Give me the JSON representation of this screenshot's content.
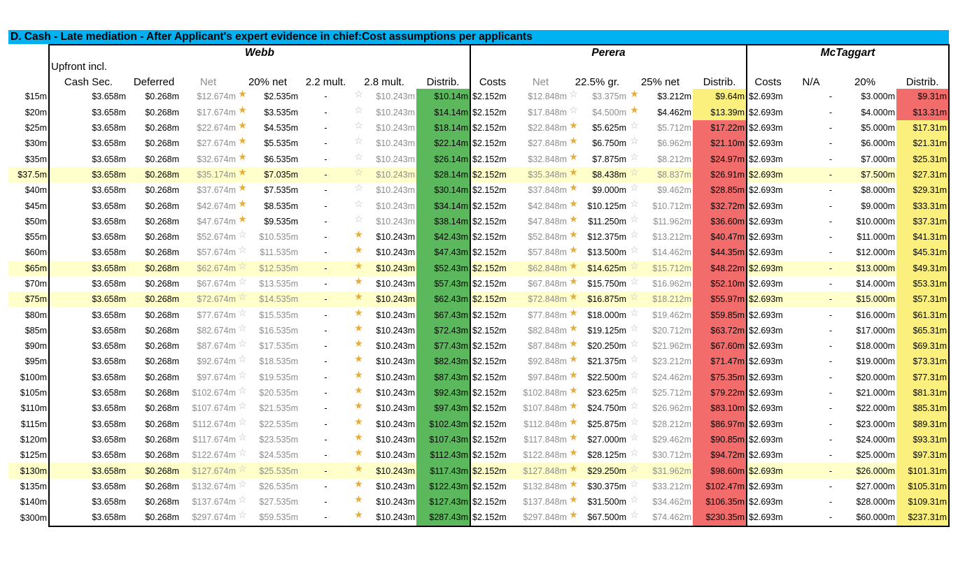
{
  "title": "D.  Cash - Late mediation - After Applicant's expert evidence in chief:Cost assumptions per applicants",
  "groups": {
    "webb": "Webb",
    "perera": "Perera",
    "mctaggart": "McTaggart"
  },
  "headers": {
    "upfront_line1": "Upfront incl.",
    "upfront_line2": "Cash Sec.",
    "deferred": "Deferred",
    "net": "Net",
    "w_20net": "20% net",
    "w_22": "2.2 mult.",
    "w_28": "2.8 mult.",
    "distrib": "Distrib.",
    "costs": "Costs",
    "p_225": "22.5% gr.",
    "p_25": "25% net",
    "na": "N/A",
    "m_20": "20%"
  },
  "constants": {
    "upfront": "$3.658m",
    "deferred": "$0.268m",
    "w_22": "-",
    "w_28": "$10.243m",
    "p_costs": "$2.152m",
    "m_costs": "$2.693m",
    "m_na": "-"
  },
  "colors": {
    "title_bg": "#00b0f0",
    "highlight_row": "#ffffcc",
    "green": "#5cb85c",
    "red": "#f36c6c",
    "yellow": "#fbf07e",
    "star_filled": "#e3ae3d",
    "star_empty": "#b8b8b8"
  },
  "icons": {
    "filled": "star-filled-icon",
    "empty": "star-empty-icon"
  },
  "rows": [
    {
      "label": "$15m",
      "hl": false,
      "w_net": "$12.674m",
      "w_20": "$2.535m",
      "w_20_star": true,
      "w_28_star": false,
      "w_dist": "$10.14m",
      "p_net": "$12.848m",
      "p_225": "$3.375m",
      "p_225_star": false,
      "p_25": "$3.212m",
      "p_25_star": true,
      "p_dist": "$9.64m",
      "p_dist_color": "yellow",
      "m_20": "$3.000m",
      "m_dist": "$9.31m",
      "m_dist_color": "red"
    },
    {
      "label": "$20m",
      "hl": false,
      "w_net": "$17.674m",
      "w_20": "$3.535m",
      "w_20_star": true,
      "w_28_star": false,
      "w_dist": "$14.14m",
      "p_net": "$17.848m",
      "p_225": "$4.500m",
      "p_225_star": false,
      "p_25": "$4.462m",
      "p_25_star": true,
      "p_dist": "$13.39m",
      "p_dist_color": "yellow",
      "m_20": "$4.000m",
      "m_dist": "$13.31m",
      "m_dist_color": "red"
    },
    {
      "label": "$25m",
      "hl": false,
      "w_net": "$22.674m",
      "w_20": "$4.535m",
      "w_20_star": true,
      "w_28_star": false,
      "w_dist": "$18.14m",
      "p_net": "$22.848m",
      "p_225": "$5.625m",
      "p_225_star": true,
      "p_25": "$5.712m",
      "p_25_star": false,
      "p_dist": "$17.22m",
      "p_dist_color": "red",
      "m_20": "$5.000m",
      "m_dist": "$17.31m",
      "m_dist_color": "yellow"
    },
    {
      "label": "$30m",
      "hl": false,
      "w_net": "$27.674m",
      "w_20": "$5.535m",
      "w_20_star": true,
      "w_28_star": false,
      "w_dist": "$22.14m",
      "p_net": "$27.848m",
      "p_225": "$6.750m",
      "p_225_star": true,
      "p_25": "$6.962m",
      "p_25_star": false,
      "p_dist": "$21.10m",
      "p_dist_color": "red",
      "m_20": "$6.000m",
      "m_dist": "$21.31m",
      "m_dist_color": "yellow"
    },
    {
      "label": "$35m",
      "hl": false,
      "w_net": "$32.674m",
      "w_20": "$6.535m",
      "w_20_star": true,
      "w_28_star": false,
      "w_dist": "$26.14m",
      "p_net": "$32.848m",
      "p_225": "$7.875m",
      "p_225_star": true,
      "p_25": "$8.212m",
      "p_25_star": false,
      "p_dist": "$24.97m",
      "p_dist_color": "red",
      "m_20": "$7.000m",
      "m_dist": "$25.31m",
      "m_dist_color": "yellow"
    },
    {
      "label": "$37.5m",
      "hl": true,
      "w_net": "$35.174m",
      "w_20": "$7.035m",
      "w_20_star": true,
      "w_28_star": false,
      "w_dist": "$28.14m",
      "p_net": "$35.348m",
      "p_225": "$8.438m",
      "p_225_star": true,
      "p_25": "$8.837m",
      "p_25_star": false,
      "p_dist": "$26.91m",
      "p_dist_color": "red",
      "m_20": "$7.500m",
      "m_dist": "$27.31m",
      "m_dist_color": "yellow"
    },
    {
      "label": "$40m",
      "hl": false,
      "w_net": "$37.674m",
      "w_20": "$7.535m",
      "w_20_star": true,
      "w_28_star": false,
      "w_dist": "$30.14m",
      "p_net": "$37.848m",
      "p_225": "$9.000m",
      "p_225_star": true,
      "p_25": "$9.462m",
      "p_25_star": false,
      "p_dist": "$28.85m",
      "p_dist_color": "red",
      "m_20": "$8.000m",
      "m_dist": "$29.31m",
      "m_dist_color": "yellow"
    },
    {
      "label": "$45m",
      "hl": false,
      "w_net": "$42.674m",
      "w_20": "$8.535m",
      "w_20_star": true,
      "w_28_star": false,
      "w_dist": "$34.14m",
      "p_net": "$42.848m",
      "p_225": "$10.125m",
      "p_225_star": true,
      "p_25": "$10.712m",
      "p_25_star": false,
      "p_dist": "$32.72m",
      "p_dist_color": "red",
      "m_20": "$9.000m",
      "m_dist": "$33.31m",
      "m_dist_color": "yellow"
    },
    {
      "label": "$50m",
      "hl": false,
      "w_net": "$47.674m",
      "w_20": "$9.535m",
      "w_20_star": true,
      "w_28_star": false,
      "w_dist": "$38.14m",
      "p_net": "$47.848m",
      "p_225": "$11.250m",
      "p_225_star": true,
      "p_25": "$11.962m",
      "p_25_star": false,
      "p_dist": "$36.60m",
      "p_dist_color": "red",
      "m_20": "$10.000m",
      "m_dist": "$37.31m",
      "m_dist_color": "yellow"
    },
    {
      "label": "$55m",
      "hl": false,
      "w_net": "$52.674m",
      "w_20": "$10.535m",
      "w_20_star": false,
      "w_28_star": true,
      "w_dist": "$42.43m",
      "p_net": "$52.848m",
      "p_225": "$12.375m",
      "p_225_star": true,
      "p_25": "$13.212m",
      "p_25_star": false,
      "p_dist": "$40.47m",
      "p_dist_color": "red",
      "m_20": "$11.000m",
      "m_dist": "$41.31m",
      "m_dist_color": "yellow"
    },
    {
      "label": "$60m",
      "hl": false,
      "w_net": "$57.674m",
      "w_20": "$11.535m",
      "w_20_star": false,
      "w_28_star": true,
      "w_dist": "$47.43m",
      "p_net": "$57.848m",
      "p_225": "$13.500m",
      "p_225_star": true,
      "p_25": "$14.462m",
      "p_25_star": false,
      "p_dist": "$44.35m",
      "p_dist_color": "red",
      "m_20": "$12.000m",
      "m_dist": "$45.31m",
      "m_dist_color": "yellow"
    },
    {
      "label": "$65m",
      "hl": true,
      "w_net": "$62.674m",
      "w_20": "$12.535m",
      "w_20_star": false,
      "w_28_star": true,
      "w_dist": "$52.43m",
      "p_net": "$62.848m",
      "p_225": "$14.625m",
      "p_225_star": true,
      "p_25": "$15.712m",
      "p_25_star": false,
      "p_dist": "$48.22m",
      "p_dist_color": "red",
      "m_20": "$13.000m",
      "m_dist": "$49.31m",
      "m_dist_color": "yellow"
    },
    {
      "label": "$70m",
      "hl": false,
      "w_net": "$67.674m",
      "w_20": "$13.535m",
      "w_20_star": false,
      "w_28_star": true,
      "w_dist": "$57.43m",
      "p_net": "$67.848m",
      "p_225": "$15.750m",
      "p_225_star": true,
      "p_25": "$16.962m",
      "p_25_star": false,
      "p_dist": "$52.10m",
      "p_dist_color": "red",
      "m_20": "$14.000m",
      "m_dist": "$53.31m",
      "m_dist_color": "yellow"
    },
    {
      "label": "$75m",
      "hl": true,
      "w_net": "$72.674m",
      "w_20": "$14.535m",
      "w_20_star": false,
      "w_28_star": true,
      "w_dist": "$62.43m",
      "p_net": "$72.848m",
      "p_225": "$16.875m",
      "p_225_star": true,
      "p_25": "$18.212m",
      "p_25_star": false,
      "p_dist": "$55.97m",
      "p_dist_color": "red",
      "m_20": "$15.000m",
      "m_dist": "$57.31m",
      "m_dist_color": "yellow"
    },
    {
      "label": "$80m",
      "hl": false,
      "w_net": "$77.674m",
      "w_20": "$15.535m",
      "w_20_star": false,
      "w_28_star": true,
      "w_dist": "$67.43m",
      "p_net": "$77.848m",
      "p_225": "$18.000m",
      "p_225_star": true,
      "p_25": "$19.462m",
      "p_25_star": false,
      "p_dist": "$59.85m",
      "p_dist_color": "red",
      "m_20": "$16.000m",
      "m_dist": "$61.31m",
      "m_dist_color": "yellow"
    },
    {
      "label": "$85m",
      "hl": false,
      "w_net": "$82.674m",
      "w_20": "$16.535m",
      "w_20_star": false,
      "w_28_star": true,
      "w_dist": "$72.43m",
      "p_net": "$82.848m",
      "p_225": "$19.125m",
      "p_225_star": true,
      "p_25": "$20.712m",
      "p_25_star": false,
      "p_dist": "$63.72m",
      "p_dist_color": "red",
      "m_20": "$17.000m",
      "m_dist": "$65.31m",
      "m_dist_color": "yellow"
    },
    {
      "label": "$90m",
      "hl": false,
      "w_net": "$87.674m",
      "w_20": "$17.535m",
      "w_20_star": false,
      "w_28_star": true,
      "w_dist": "$77.43m",
      "p_net": "$87.848m",
      "p_225": "$20.250m",
      "p_225_star": true,
      "p_25": "$21.962m",
      "p_25_star": false,
      "p_dist": "$67.60m",
      "p_dist_color": "red",
      "m_20": "$18.000m",
      "m_dist": "$69.31m",
      "m_dist_color": "yellow"
    },
    {
      "label": "$95m",
      "hl": false,
      "w_net": "$92.674m",
      "w_20": "$18.535m",
      "w_20_star": false,
      "w_28_star": true,
      "w_dist": "$82.43m",
      "p_net": "$92.848m",
      "p_225": "$21.375m",
      "p_225_star": true,
      "p_25": "$23.212m",
      "p_25_star": false,
      "p_dist": "$71.47m",
      "p_dist_color": "red",
      "m_20": "$19.000m",
      "m_dist": "$73.31m",
      "m_dist_color": "yellow"
    },
    {
      "label": "$100m",
      "hl": false,
      "w_net": "$97.674m",
      "w_20": "$19.535m",
      "w_20_star": false,
      "w_28_star": true,
      "w_dist": "$87.43m",
      "p_net": "$97.848m",
      "p_225": "$22.500m",
      "p_225_star": true,
      "p_25": "$24.462m",
      "p_25_star": false,
      "p_dist": "$75.35m",
      "p_dist_color": "red",
      "m_20": "$20.000m",
      "m_dist": "$77.31m",
      "m_dist_color": "yellow"
    },
    {
      "label": "$105m",
      "hl": false,
      "w_net": "$102.674m",
      "w_20": "$20.535m",
      "w_20_star": false,
      "w_28_star": true,
      "w_dist": "$92.43m",
      "p_net": "$102.848m",
      "p_225": "$23.625m",
      "p_225_star": true,
      "p_25": "$25.712m",
      "p_25_star": false,
      "p_dist": "$79.22m",
      "p_dist_color": "red",
      "m_20": "$21.000m",
      "m_dist": "$81.31m",
      "m_dist_color": "yellow"
    },
    {
      "label": "$110m",
      "hl": false,
      "w_net": "$107.674m",
      "w_20": "$21.535m",
      "w_20_star": false,
      "w_28_star": true,
      "w_dist": "$97.43m",
      "p_net": "$107.848m",
      "p_225": "$24.750m",
      "p_225_star": true,
      "p_25": "$26.962m",
      "p_25_star": false,
      "p_dist": "$83.10m",
      "p_dist_color": "red",
      "m_20": "$22.000m",
      "m_dist": "$85.31m",
      "m_dist_color": "yellow"
    },
    {
      "label": "$115m",
      "hl": false,
      "w_net": "$112.674m",
      "w_20": "$22.535m",
      "w_20_star": false,
      "w_28_star": true,
      "w_dist": "$102.43m",
      "p_net": "$112.848m",
      "p_225": "$25.875m",
      "p_225_star": true,
      "p_25": "$28.212m",
      "p_25_star": false,
      "p_dist": "$86.97m",
      "p_dist_color": "red",
      "m_20": "$23.000m",
      "m_dist": "$89.31m",
      "m_dist_color": "yellow"
    },
    {
      "label": "$120m",
      "hl": false,
      "w_net": "$117.674m",
      "w_20": "$23.535m",
      "w_20_star": false,
      "w_28_star": true,
      "w_dist": "$107.43m",
      "p_net": "$117.848m",
      "p_225": "$27.000m",
      "p_225_star": true,
      "p_25": "$29.462m",
      "p_25_star": false,
      "p_dist": "$90.85m",
      "p_dist_color": "red",
      "m_20": "$24.000m",
      "m_dist": "$93.31m",
      "m_dist_color": "yellow"
    },
    {
      "label": "$125m",
      "hl": false,
      "w_net": "$122.674m",
      "w_20": "$24.535m",
      "w_20_star": false,
      "w_28_star": true,
      "w_dist": "$112.43m",
      "p_net": "$122.848m",
      "p_225": "$28.125m",
      "p_225_star": true,
      "p_25": "$30.712m",
      "p_25_star": false,
      "p_dist": "$94.72m",
      "p_dist_color": "red",
      "m_20": "$25.000m",
      "m_dist": "$97.31m",
      "m_dist_color": "yellow"
    },
    {
      "label": "$130m",
      "hl": true,
      "w_net": "$127.674m",
      "w_20": "$25.535m",
      "w_20_star": false,
      "w_28_star": true,
      "w_dist": "$117.43m",
      "p_net": "$127.848m",
      "p_225": "$29.250m",
      "p_225_star": true,
      "p_25": "$31.962m",
      "p_25_star": false,
      "p_dist": "$98.60m",
      "p_dist_color": "red",
      "m_20": "$26.000m",
      "m_dist": "$101.31m",
      "m_dist_color": "yellow"
    },
    {
      "label": "$135m",
      "hl": false,
      "w_net": "$132.674m",
      "w_20": "$26.535m",
      "w_20_star": false,
      "w_28_star": true,
      "w_dist": "$122.43m",
      "p_net": "$132.848m",
      "p_225": "$30.375m",
      "p_225_star": true,
      "p_25": "$33.212m",
      "p_25_star": false,
      "p_dist": "$102.47m",
      "p_dist_color": "red",
      "m_20": "$27.000m",
      "m_dist": "$105.31m",
      "m_dist_color": "yellow"
    },
    {
      "label": "$140m",
      "hl": false,
      "w_net": "$137.674m",
      "w_20": "$27.535m",
      "w_20_star": false,
      "w_28_star": true,
      "w_dist": "$127.43m",
      "p_net": "$137.848m",
      "p_225": "$31.500m",
      "p_225_star": true,
      "p_25": "$34.462m",
      "p_25_star": false,
      "p_dist": "$106.35m",
      "p_dist_color": "red",
      "m_20": "$28.000m",
      "m_dist": "$109.31m",
      "m_dist_color": "yellow"
    },
    {
      "label": "$300m",
      "hl": false,
      "w_net": "$297.674m",
      "w_20": "$59.535m",
      "w_20_star": false,
      "w_28_star": true,
      "w_dist": "$287.43m",
      "p_net": "$297.848m",
      "p_225": "$67.500m",
      "p_225_star": true,
      "p_25": "$74.462m",
      "p_25_star": false,
      "p_dist": "$230.35m",
      "p_dist_color": "red",
      "m_20": "$60.000m",
      "m_dist": "$237.31m",
      "m_dist_color": "yellow"
    }
  ]
}
